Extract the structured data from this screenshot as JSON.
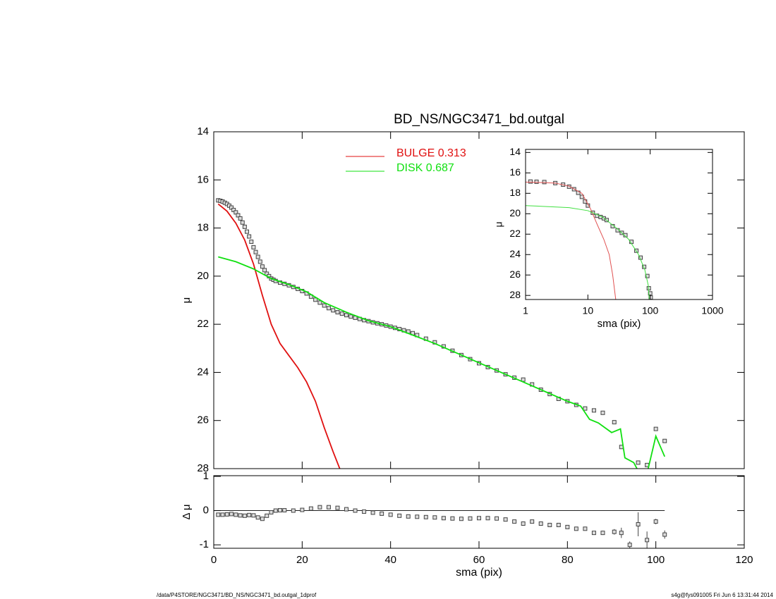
{
  "chart_data": [
    {
      "type": "line",
      "title": "BD_NS/NGC3471_bd.outgal",
      "ylabel": "μ",
      "xlim": [
        0,
        120
      ],
      "ylim": [
        28,
        14
      ],
      "xticks": [
        0,
        20,
        40,
        60,
        80,
        100,
        120
      ],
      "yticks": [
        14,
        16,
        18,
        20,
        22,
        24,
        26,
        28
      ],
      "xtick_labels": false,
      "legend": true,
      "series": [
        {
          "style": "points",
          "color": "#444444",
          "x": [
            1,
            1.5,
            2,
            2.5,
            3,
            3.5,
            4,
            4.5,
            5,
            5.5,
            6,
            6.5,
            7,
            7.5,
            8,
            8.5,
            9,
            9.5,
            10,
            10.5,
            11,
            11.5,
            12,
            12.5,
            13,
            13.5,
            14,
            15,
            16,
            17,
            18,
            19,
            20,
            21,
            22,
            23,
            24,
            25,
            26,
            27,
            28,
            29,
            30,
            31,
            32,
            33,
            34,
            35,
            36,
            37,
            38,
            39,
            40,
            41,
            42,
            43,
            44,
            45,
            46,
            48,
            50,
            52,
            54,
            56,
            58,
            60,
            62,
            64,
            66,
            68,
            70,
            72,
            74,
            76,
            78,
            80,
            82,
            84,
            86,
            88,
            90.6,
            92.2,
            96,
            98,
            100,
            102
          ],
          "values": [
            16.85,
            16.87,
            16.9,
            16.95,
            17.0,
            17.07,
            17.15,
            17.25,
            17.35,
            17.47,
            17.6,
            17.77,
            17.95,
            18.15,
            18.35,
            18.57,
            18.8,
            19.0,
            19.2,
            19.4,
            19.6,
            19.75,
            19.9,
            20.0,
            20.1,
            20.15,
            20.2,
            20.27,
            20.32,
            20.38,
            20.45,
            20.53,
            20.62,
            20.72,
            20.85,
            20.98,
            21.1,
            21.22,
            21.33,
            21.42,
            21.5,
            21.56,
            21.62,
            21.68,
            21.73,
            21.78,
            21.83,
            21.87,
            21.92,
            21.96,
            22.0,
            22.05,
            22.1,
            22.15,
            22.2,
            22.25,
            22.3,
            22.37,
            22.45,
            22.6,
            22.75,
            22.92,
            23.1,
            23.28,
            23.45,
            23.62,
            23.78,
            23.92,
            24.08,
            24.22,
            24.3,
            24.5,
            24.72,
            24.9,
            25.1,
            25.2,
            25.35,
            25.5,
            25.58,
            25.68,
            26.07,
            27.1,
            27.75,
            27.85,
            26.35,
            26.85
          ]
        },
        {
          "style": "line",
          "name": "BULGE  0.313",
          "color": "#e01010",
          "width": 1.8,
          "x": [
            1,
            3,
            5,
            7,
            9,
            11,
            13,
            15,
            17,
            19,
            21,
            23,
            25,
            27,
            28.5
          ],
          "values": [
            17.0,
            17.3,
            17.8,
            18.5,
            19.5,
            20.8,
            22.0,
            22.8,
            23.3,
            23.8,
            24.4,
            25.2,
            26.3,
            27.3,
            28.0
          ]
        },
        {
          "style": "line",
          "name": "DISK  0.687",
          "color": "#10e010",
          "width": 1.8,
          "x": [
            1,
            5,
            9,
            13,
            17,
            21,
            25,
            30,
            35,
            40,
            45,
            50,
            55,
            60,
            65,
            70,
            75,
            80,
            83,
            85,
            87,
            90,
            92,
            93,
            95,
            97.5,
            100,
            102
          ],
          "values": [
            19.2,
            19.4,
            19.7,
            20.1,
            20.35,
            20.65,
            21.1,
            21.5,
            21.85,
            22.1,
            22.45,
            22.8,
            23.2,
            23.6,
            24.0,
            24.4,
            24.8,
            25.2,
            25.4,
            25.95,
            26.1,
            26.5,
            26.35,
            27.55,
            27.75,
            28.6,
            26.65,
            27.5
          ]
        }
      ]
    },
    {
      "type": "line",
      "xlabel": "sma (pix)",
      "ylabel": "μ",
      "xlog": true,
      "xlim": [
        1,
        1000
      ],
      "ylim": [
        28.4,
        13.7
      ],
      "xticks": [
        1,
        10,
        100,
        1000
      ],
      "yticks": [
        14,
        16,
        18,
        20,
        22,
        24,
        26,
        28
      ],
      "xtick_labels": true,
      "series": [
        {
          "style": "points",
          "color": "#444444",
          "x": [
            1.2,
            1.5,
            2,
            3,
            4,
            5,
            6,
            7,
            8,
            9,
            10,
            12,
            14,
            16,
            18,
            20,
            25,
            30,
            35,
            40,
            50,
            60,
            70,
            80,
            90,
            95,
            100,
            102
          ],
          "values": [
            16.85,
            16.87,
            16.9,
            17.0,
            17.15,
            17.35,
            17.6,
            17.95,
            18.35,
            18.8,
            19.2,
            19.9,
            20.2,
            20.32,
            20.45,
            20.62,
            21.22,
            21.62,
            21.87,
            22.1,
            22.75,
            23.62,
            24.3,
            25.2,
            26.1,
            27.3,
            27.8,
            28.2
          ]
        },
        {
          "style": "line",
          "color": "#e05050",
          "width": 1,
          "x": [
            1,
            2,
            3,
            5,
            8,
            11,
            14,
            18,
            22,
            25,
            28
          ],
          "values": [
            16.9,
            16.95,
            17.0,
            17.3,
            18.0,
            19.5,
            21.0,
            22.5,
            24.0,
            26.0,
            28.4
          ]
        },
        {
          "style": "line",
          "color": "#40e040",
          "width": 1,
          "x": [
            1,
            5,
            10,
            17,
            30,
            45,
            65,
            82,
            93,
            97
          ],
          "values": [
            19.2,
            19.4,
            19.7,
            20.3,
            21.5,
            22.5,
            24.0,
            25.5,
            27.0,
            28.4
          ]
        }
      ]
    },
    {
      "type": "scatter",
      "xlabel": "sma (pix)",
      "ylabel": "Δ μ",
      "hline": 0,
      "xlim": [
        0,
        120
      ],
      "ylim": [
        -1.1,
        1.02
      ],
      "xticks": [
        0,
        20,
        40,
        60,
        80,
        100,
        120
      ],
      "yticks": [
        -1,
        0,
        1
      ],
      "xtick_labels": true,
      "series": [
        {
          "style": "points",
          "color": "#444444",
          "x": [
            1,
            2,
            3,
            4,
            5,
            6,
            7,
            8,
            9,
            10,
            11,
            12,
            13,
            14,
            15,
            16,
            18,
            20,
            22,
            24,
            26,
            28,
            30,
            32,
            34,
            36,
            38,
            40,
            42,
            44,
            46,
            48,
            50,
            52,
            54,
            56,
            58,
            60,
            62,
            64,
            66,
            68,
            70,
            72,
            74,
            76,
            78,
            80,
            82,
            84,
            86,
            88,
            90.6,
            92.2,
            94.1,
            96,
            98,
            100,
            102
          ],
          "values": [
            -0.12,
            -0.12,
            -0.11,
            -0.1,
            -0.12,
            -0.14,
            -0.15,
            -0.13,
            -0.14,
            -0.2,
            -0.24,
            -0.15,
            -0.05,
            0.0,
            0.01,
            0.01,
            0.0,
            0.02,
            0.06,
            0.1,
            0.1,
            0.08,
            0.04,
            0.0,
            -0.03,
            -0.06,
            -0.09,
            -0.12,
            -0.15,
            -0.17,
            -0.18,
            -0.19,
            -0.2,
            -0.22,
            -0.23,
            -0.24,
            -0.23,
            -0.22,
            -0.22,
            -0.23,
            -0.26,
            -0.32,
            -0.38,
            -0.32,
            -0.38,
            -0.42,
            -0.42,
            -0.48,
            -0.53,
            -0.53,
            -0.65,
            -0.65,
            -0.62,
            -0.65,
            -1.0,
            -0.4,
            -0.86,
            -0.32,
            -0.7
          ],
          "errors": [
            null,
            null,
            null,
            null,
            null,
            null,
            null,
            null,
            null,
            null,
            null,
            null,
            null,
            null,
            null,
            null,
            null,
            null,
            null,
            null,
            null,
            null,
            null,
            null,
            null,
            null,
            null,
            null,
            null,
            null,
            null,
            null,
            null,
            null,
            null,
            null,
            null,
            null,
            null,
            null,
            null,
            null,
            null,
            null,
            null,
            null,
            null,
            null,
            null,
            null,
            0.05,
            0.06,
            0.08,
            0.15,
            0.1,
            0.35,
            0.25,
            0.08,
            0.12
          ]
        }
      ]
    }
  ],
  "footer": {
    "left": "/data/P4STORE/NGC3471/BD_NS/NGC3471_bd.outgal_1dprof",
    "right": "s4g@fys091005  Fri Jun  6 13:31:44 2014"
  }
}
